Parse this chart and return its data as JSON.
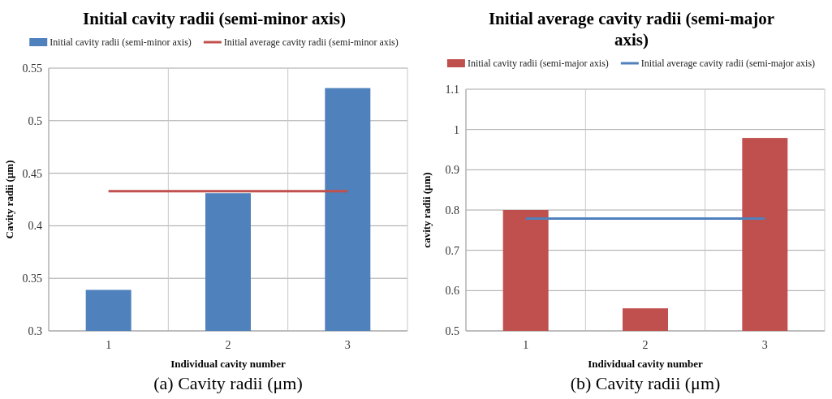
{
  "chart_data": [
    {
      "type": "bar",
      "title": "Initial cavity radii (semi-minor axis)",
      "xlabel": "Individual  cavity number",
      "ylabel": "Cavity radii  (μm)",
      "categories": [
        "1",
        "2",
        "3"
      ],
      "series": [
        {
          "name": "Initial cavity radii (semi-minor axis)",
          "color": "#4f81bd",
          "values": [
            0.339,
            0.431,
            0.531
          ]
        },
        {
          "name": "Initial average cavity radii (semi-minor axis)",
          "type": "line",
          "color": "#c0504d",
          "values": [
            0.433,
            0.433,
            0.433
          ]
        }
      ],
      "ylim": [
        0.3,
        0.55
      ],
      "yticks": [
        0.3,
        0.35,
        0.4,
        0.45,
        0.5,
        0.55
      ],
      "grid": true,
      "legend": "top",
      "annotations": [
        "(a)   Cavity radii (μm)"
      ]
    },
    {
      "type": "bar",
      "title": "Initial average cavity radii (semi-major axis)",
      "xlabel": "Individual  cavity number",
      "ylabel": "cavity radii  (μm)",
      "categories": [
        "1",
        "2",
        "3"
      ],
      "series": [
        {
          "name": "Initial cavity radii (semi-major axis)",
          "color": "#c0504d",
          "values": [
            0.8,
            0.556,
            0.979
          ]
        },
        {
          "name": "Initial average cavity radii (semi-major axis)",
          "type": "line",
          "color": "#4f81bd",
          "values": [
            0.779,
            0.779,
            0.779
          ]
        }
      ],
      "ylim": [
        0.5,
        1.1
      ],
      "yticks": [
        0.5,
        0.6,
        0.7,
        0.8,
        0.9,
        1,
        1.1
      ],
      "grid": true,
      "legend": "top",
      "annotations": [
        "(b)   Cavity radii (μm)"
      ]
    }
  ]
}
